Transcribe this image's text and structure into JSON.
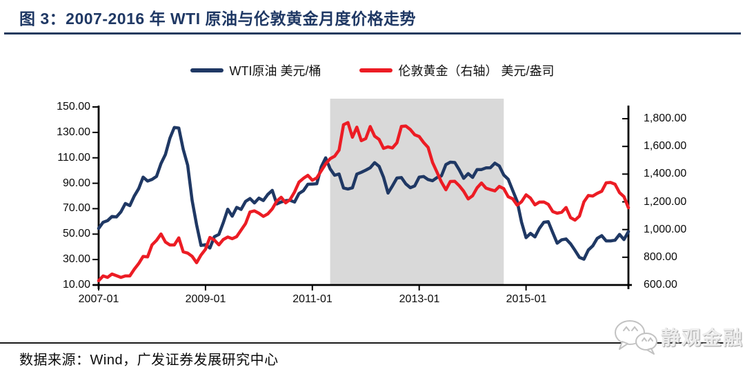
{
  "title": "图 3：2007-2016 年 WTI 原油与伦敦黄金月度价格走势",
  "legend": [
    {
      "label": "WTI原油 美元/桶",
      "color": "#1f3864"
    },
    {
      "label": "伦敦黄金（右轴） 美元/盎司",
      "color": "#ec1c24"
    }
  ],
  "source": "数据来源：Wind，广发证券发展研究中心",
  "watermark": {
    "text": "静观金融"
  },
  "colors": {
    "navy": "#1f3864",
    "red": "#ec1c24",
    "band": "#d9d9d9",
    "axis": "#000000",
    "title_navy": "#1f3864"
  },
  "chart_data": {
    "type": "line",
    "title": "2007-2016 年 WTI 原油与伦敦黄金月度价格走势",
    "x_start": "2007-01",
    "x_end": "2016-12",
    "months_count": 120,
    "x_tick_labels": [
      "2007-01",
      "2009-01",
      "2011-01",
      "2013-01",
      "2015-01"
    ],
    "left_axis": {
      "unit": "美元/桶",
      "min": 10,
      "max": 150,
      "ticks": [
        "150.00",
        "130.00",
        "110.00",
        "90.00",
        "70.00",
        "50.00",
        "30.00",
        "10.00"
      ]
    },
    "right_axis": {
      "unit": "美元/盎司",
      "min": 600,
      "max": 1800,
      "ticks": [
        "1,800.00",
        "1,600.00",
        "1,400.00",
        "1,200.00",
        "1,000.00",
        "800.00",
        "600.00"
      ]
    },
    "highlight_band": {
      "from": "2011-05",
      "to": "2014-08",
      "color": "#d9d9d9"
    },
    "grid": false,
    "legend_position": "top-center",
    "series": [
      {
        "name": "WTI原油 美元/桶",
        "axis": "left",
        "color": "#1f3864",
        "values": [
          54.5,
          59.3,
          60.6,
          63.9,
          63.5,
          67.5,
          74.1,
          72.4,
          79.9,
          85.8,
          94.8,
          91.7,
          93.0,
          95.4,
          105.5,
          112.6,
          125.4,
          133.9,
          133.4,
          116.7,
          104.1,
          76.6,
          57.3,
          41.1,
          41.7,
          39.1,
          48.0,
          49.8,
          59.0,
          69.6,
          64.1,
          71.0,
          69.4,
          75.7,
          78.0,
          74.5,
          78.3,
          76.4,
          81.2,
          84.4,
          73.7,
          75.3,
          76.3,
          76.6,
          75.2,
          81.9,
          84.2,
          89.2,
          89.4,
          89.6,
          102.9,
          110.0,
          101.3,
          96.3,
          97.3,
          86.3,
          85.5,
          86.4,
          97.2,
          98.6,
          100.3,
          102.2,
          106.2,
          103.3,
          94.7,
          82.3,
          87.9,
          94.1,
          94.5,
          89.5,
          86.5,
          87.9,
          94.8,
          95.3,
          92.9,
          92.0,
          94.5,
          95.8,
          104.7,
          106.6,
          106.3,
          100.5,
          93.9,
          97.6,
          94.6,
          100.8,
          100.8,
          102.1,
          102.2,
          105.8,
          103.6,
          96.5,
          93.2,
          84.4,
          75.8,
          59.3,
          47.2,
          50.6,
          47.8,
          54.5,
          59.3,
          59.8,
          51.2,
          42.9,
          45.5,
          46.2,
          42.4,
          37.2,
          31.7,
          30.3,
          37.5,
          40.8,
          46.7,
          48.8,
          44.7,
          44.7,
          45.2,
          49.8,
          45.7,
          52.0
        ]
      },
      {
        "name": "伦敦黄金（右轴） 美元/盎司",
        "axis": "right",
        "color": "#ec1c24",
        "values": [
          631,
          665,
          655,
          679,
          667,
          655,
          665,
          665,
          713,
          755,
          806,
          803,
          890,
          922,
          968,
          910,
          889,
          889,
          940,
          839,
          830,
          807,
          761,
          816,
          858,
          943,
          924,
          890,
          928,
          946,
          934,
          949,
          996,
          1043,
          1127,
          1135,
          1118,
          1095,
          1113,
          1149,
          1205,
          1233,
          1193,
          1216,
          1271,
          1342,
          1370,
          1391,
          1356,
          1373,
          1424,
          1474,
          1511,
          1529,
          1573,
          1756,
          1772,
          1666,
          1739,
          1641,
          1656,
          1743,
          1674,
          1650,
          1586,
          1597,
          1589,
          1626,
          1744,
          1747,
          1722,
          1684,
          1671,
          1628,
          1593,
          1485,
          1414,
          1343,
          1287,
          1347,
          1348,
          1316,
          1276,
          1221,
          1244,
          1301,
          1336,
          1299,
          1288,
          1279,
          1311,
          1295,
          1237,
          1222,
          1176,
          1201,
          1251,
          1227,
          1178,
          1198,
          1199,
          1182,
          1130,
          1118,
          1125,
          1159,
          1086,
          1068,
          1097,
          1200,
          1246,
          1242,
          1261,
          1276,
          1337,
          1340,
          1327,
          1266,
          1238,
          1157
        ]
      }
    ]
  }
}
